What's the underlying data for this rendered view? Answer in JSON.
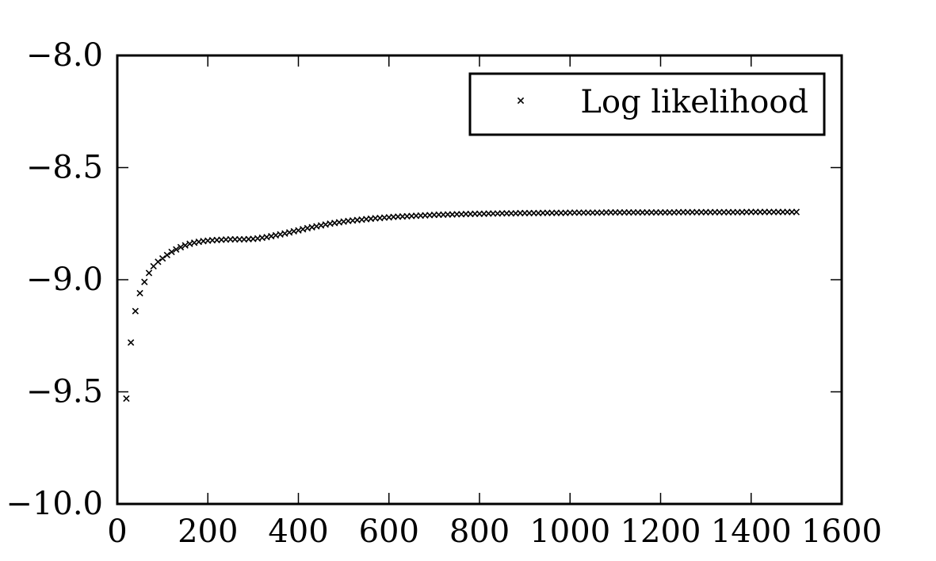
{
  "chart_data": {
    "type": "scatter",
    "title": "",
    "xlabel": "",
    "ylabel": "",
    "xlim": [
      0,
      1600
    ],
    "ylim": [
      -10.0,
      -8.0
    ],
    "xticks": [
      0,
      200,
      400,
      600,
      800,
      1000,
      1200,
      1400,
      1600
    ],
    "xtick_labels": [
      "0",
      "200",
      "400",
      "600",
      "800",
      "1000",
      "1200",
      "1400",
      "1600"
    ],
    "yticks": [
      -10.0,
      -9.5,
      -9.0,
      -8.5,
      -8.0
    ],
    "ytick_labels": [
      "−10.0",
      "−9.5",
      "−9.0",
      "−8.5",
      "−8.0"
    ],
    "grid": false,
    "legend": {
      "position": "top-right",
      "entries": [
        "Log likelihood"
      ]
    },
    "marker": "x",
    "color": "#000000",
    "series": [
      {
        "name": "Log likelihood",
        "x": [
          20,
          30,
          40,
          50,
          60,
          70,
          80,
          90,
          100,
          110,
          120,
          130,
          140,
          150,
          160,
          170,
          180,
          190,
          200,
          210,
          220,
          230,
          240,
          250,
          260,
          270,
          280,
          290,
          300,
          310,
          320,
          330,
          340,
          350,
          360,
          370,
          380,
          390,
          400,
          410,
          420,
          430,
          440,
          450,
          460,
          470,
          480,
          490,
          500,
          510,
          520,
          530,
          540,
          550,
          560,
          570,
          580,
          590,
          600,
          610,
          620,
          630,
          640,
          650,
          660,
          670,
          680,
          690,
          700,
          710,
          720,
          730,
          740,
          750,
          760,
          770,
          780,
          790,
          800,
          810,
          820,
          830,
          840,
          850,
          860,
          870,
          880,
          890,
          900,
          910,
          920,
          930,
          940,
          950,
          960,
          970,
          980,
          990,
          1000,
          1010,
          1020,
          1030,
          1040,
          1050,
          1060,
          1070,
          1080,
          1090,
          1100,
          1110,
          1120,
          1130,
          1140,
          1150,
          1160,
          1170,
          1180,
          1190,
          1200,
          1210,
          1220,
          1230,
          1240,
          1250,
          1260,
          1270,
          1280,
          1290,
          1300,
          1310,
          1320,
          1330,
          1340,
          1350,
          1360,
          1370,
          1380,
          1390,
          1400,
          1410,
          1420,
          1430,
          1440,
          1450,
          1460,
          1470,
          1480,
          1490,
          1500
        ],
        "y": [
          -9.53,
          -9.28,
          -9.14,
          -9.06,
          -9.01,
          -8.97,
          -8.94,
          -8.92,
          -8.905,
          -8.89,
          -8.876,
          -8.865,
          -8.855,
          -8.847,
          -8.84,
          -8.835,
          -8.831,
          -8.828,
          -8.826,
          -8.824,
          -8.823,
          -8.822,
          -8.821,
          -8.82,
          -8.82,
          -8.82,
          -8.82,
          -8.819,
          -8.818,
          -8.816,
          -8.813,
          -8.81,
          -8.806,
          -8.802,
          -8.798,
          -8.794,
          -8.789,
          -8.784,
          -8.78,
          -8.775,
          -8.77,
          -8.766,
          -8.762,
          -8.758,
          -8.754,
          -8.75,
          -8.747,
          -8.744,
          -8.741,
          -8.738,
          -8.736,
          -8.734,
          -8.732,
          -8.73,
          -8.728,
          -8.726,
          -8.725,
          -8.723,
          -8.722,
          -8.72,
          -8.719,
          -8.718,
          -8.717,
          -8.716,
          -8.715,
          -8.714,
          -8.713,
          -8.712,
          -8.711,
          -8.71,
          -8.71,
          -8.709,
          -8.709,
          -8.708,
          -8.708,
          -8.707,
          -8.707,
          -8.706,
          -8.706,
          -8.706,
          -8.705,
          -8.705,
          -8.705,
          -8.704,
          -8.704,
          -8.704,
          -8.704,
          -8.703,
          -8.703,
          -8.703,
          -8.703,
          -8.703,
          -8.702,
          -8.702,
          -8.702,
          -8.702,
          -8.702,
          -8.702,
          -8.701,
          -8.701,
          -8.701,
          -8.701,
          -8.701,
          -8.701,
          -8.701,
          -8.701,
          -8.7,
          -8.7,
          -8.7,
          -8.7,
          -8.7,
          -8.7,
          -8.7,
          -8.7,
          -8.7,
          -8.7,
          -8.7,
          -8.7,
          -8.7,
          -8.7,
          -8.7,
          -8.7,
          -8.699,
          -8.699,
          -8.699,
          -8.699,
          -8.699,
          -8.699,
          -8.699,
          -8.699,
          -8.699,
          -8.699,
          -8.699,
          -8.699,
          -8.699,
          -8.699,
          -8.699,
          -8.698,
          -8.698,
          -8.698,
          -8.698,
          -8.698,
          -8.698,
          -8.698,
          -8.698,
          -8.698,
          -8.698,
          -8.698,
          -8.698
        ]
      }
    ]
  }
}
